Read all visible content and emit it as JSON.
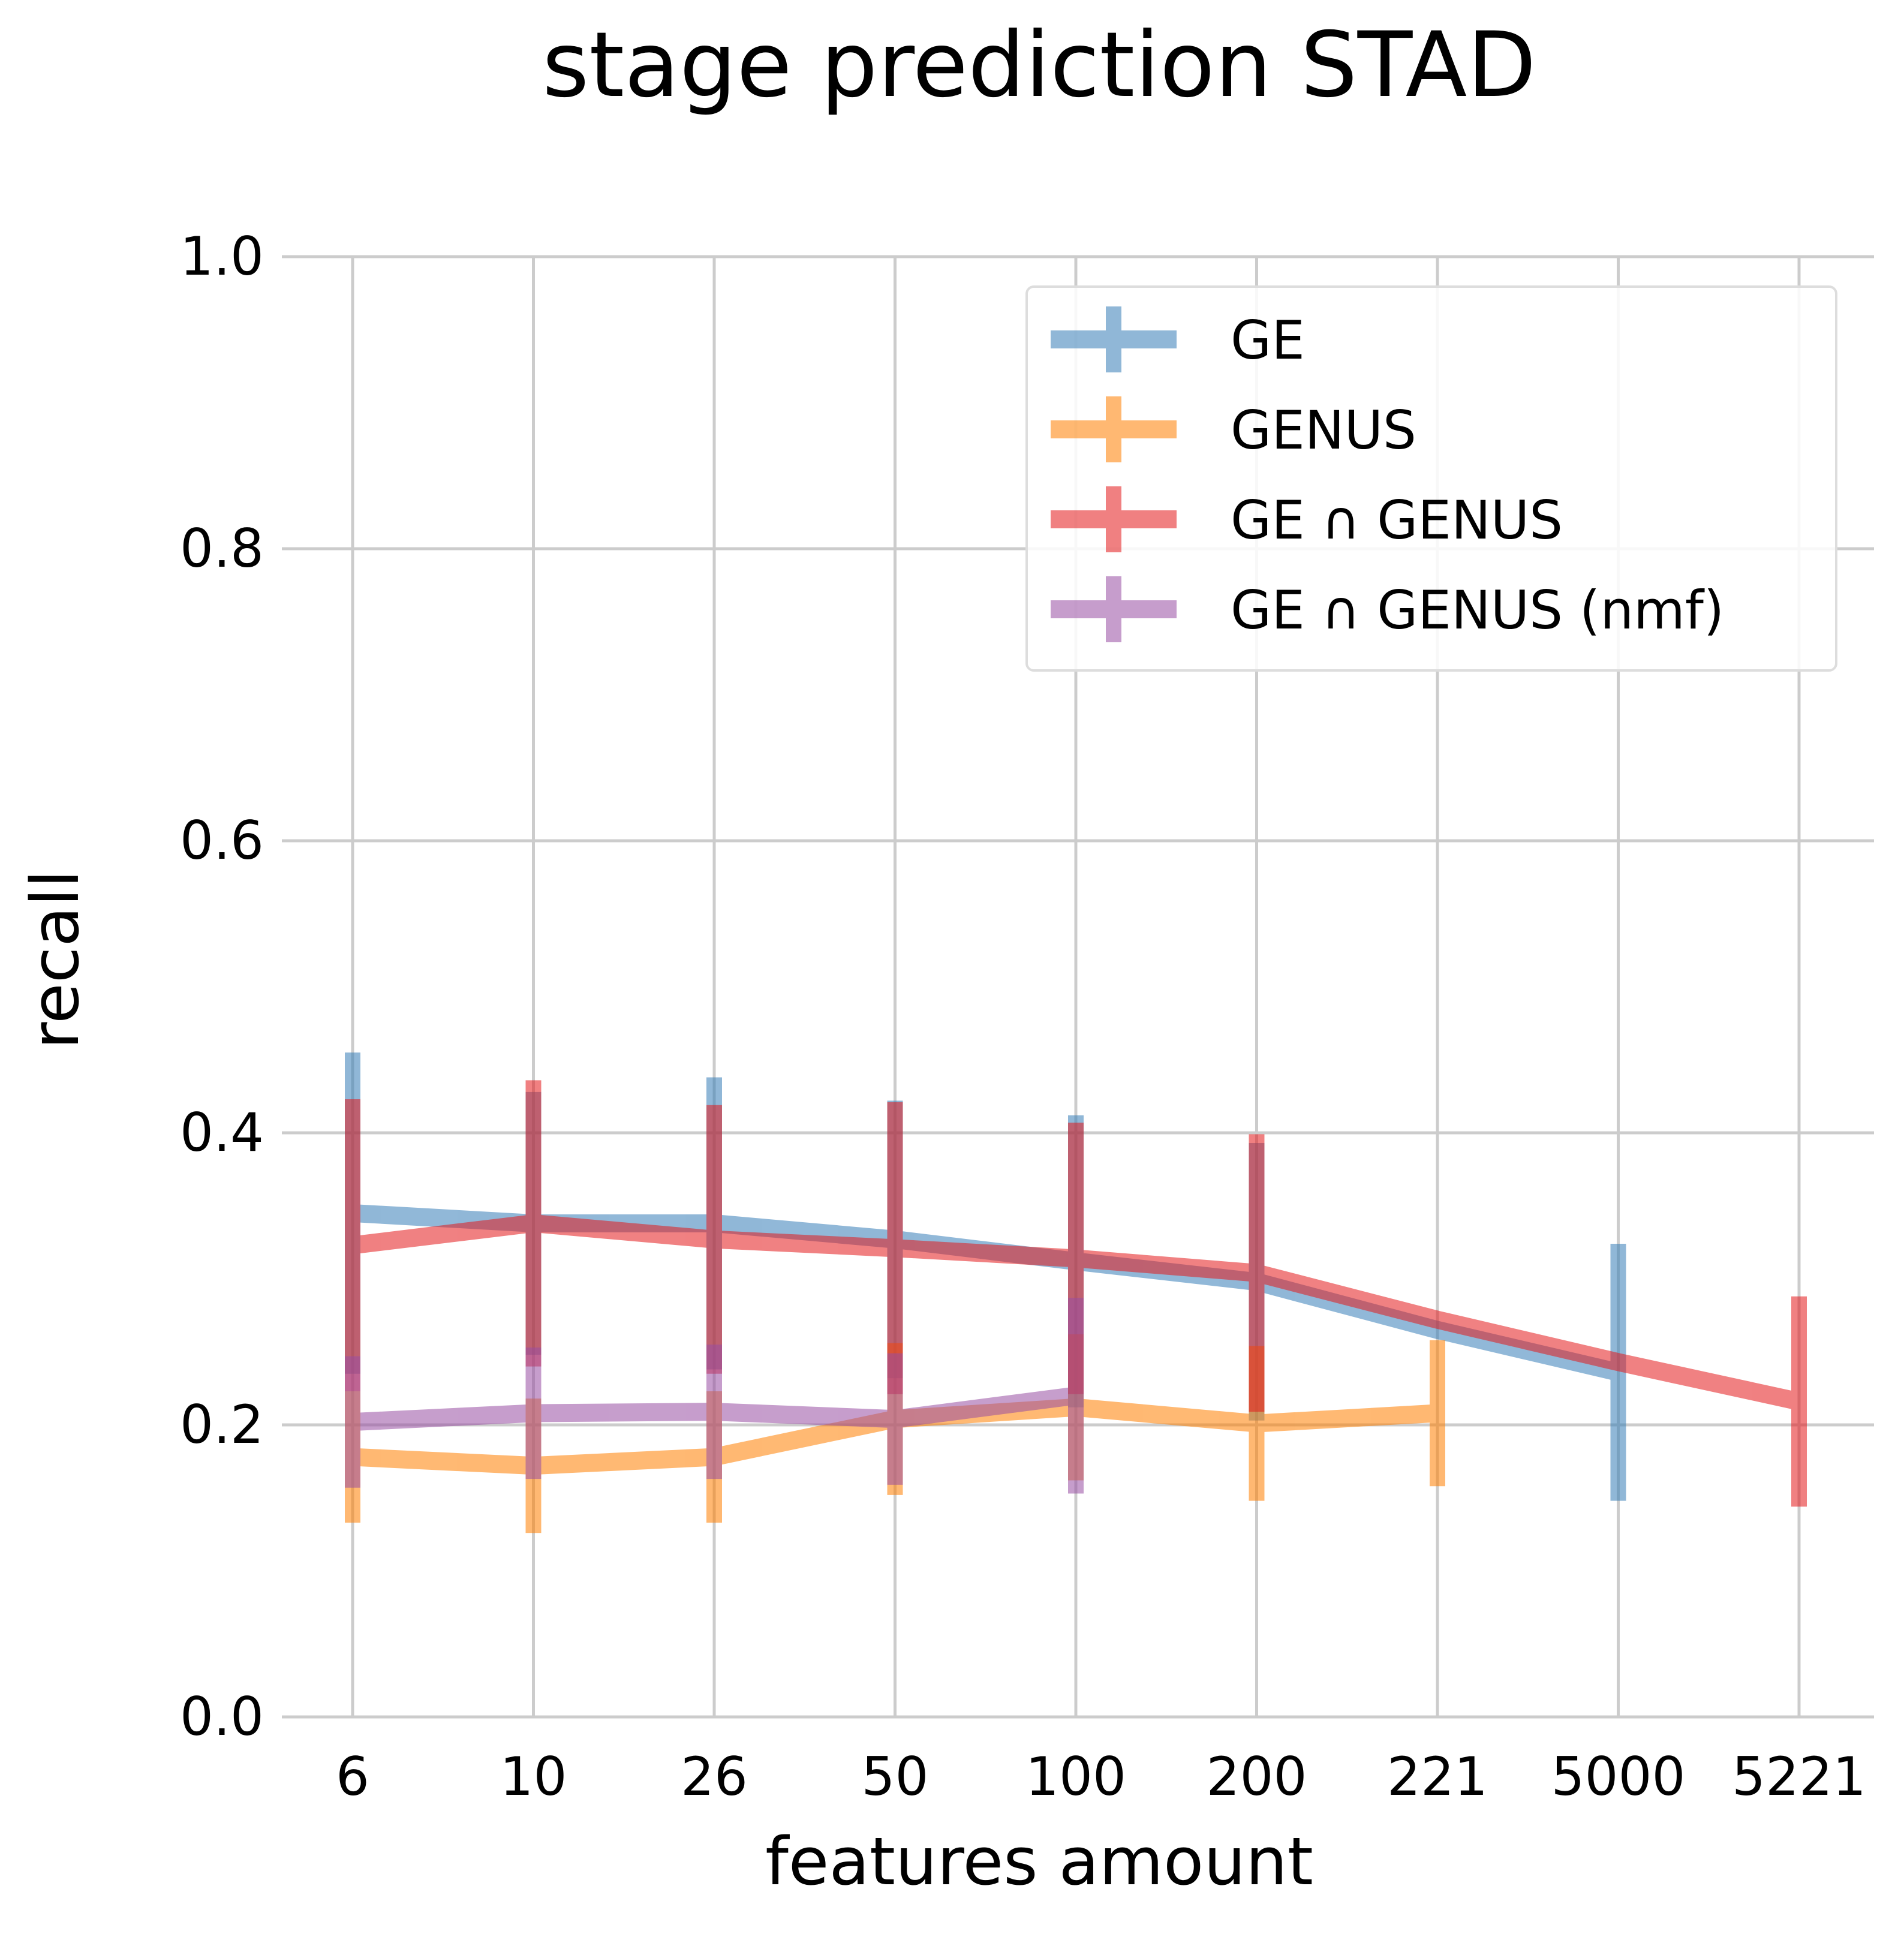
{
  "chart_data": {
    "type": "line",
    "title": "stage prediction STAD",
    "xlabel": "features amount",
    "ylabel": "recall",
    "categories": [
      "6",
      "10",
      "26",
      "50",
      "100",
      "200",
      "221",
      "5000",
      "5221"
    ],
    "ylim": [
      0.0,
      1.0
    ],
    "yticks": [
      "0.0",
      "0.2",
      "0.4",
      "0.6",
      "0.8",
      "1.0"
    ],
    "grid": true,
    "legend_position": "top-right",
    "series": [
      {
        "name": "GE",
        "color": "#377eb8",
        "values": [
          0.345,
          0.338,
          0.338,
          0.327,
          0.312,
          0.298,
          0.265,
          0.236,
          null
        ],
        "err": [
          0.11,
          0.09,
          0.1,
          0.095,
          0.1,
          0.095,
          0.0,
          0.088,
          null
        ]
      },
      {
        "name": "GENUS",
        "color": "#ff7f00",
        "values": [
          0.178,
          0.172,
          0.178,
          0.204,
          0.212,
          0.201,
          0.208,
          null,
          null
        ],
        "err": [
          0.045,
          0.046,
          0.045,
          0.052,
          0.05,
          0.053,
          0.05,
          null,
          null
        ]
      },
      {
        "name": "GE ∩ GENUS",
        "color": "#e41a1c",
        "values": [
          0.323,
          0.338,
          0.327,
          0.321,
          0.314,
          0.304,
          0.272,
          0.243,
          0.216
        ],
        "err": [
          0.1,
          0.098,
          0.092,
          0.1,
          0.093,
          0.095,
          0.0,
          0.0,
          0.072
        ]
      },
      {
        "name": "GE ∩ GENUS (nmf)",
        "color": "#984ea3",
        "values": [
          0.202,
          0.208,
          0.209,
          0.204,
          0.22,
          null,
          null,
          null,
          null
        ],
        "err": [
          0.045,
          0.045,
          0.046,
          0.045,
          0.067,
          null,
          null,
          null,
          null
        ]
      }
    ]
  }
}
